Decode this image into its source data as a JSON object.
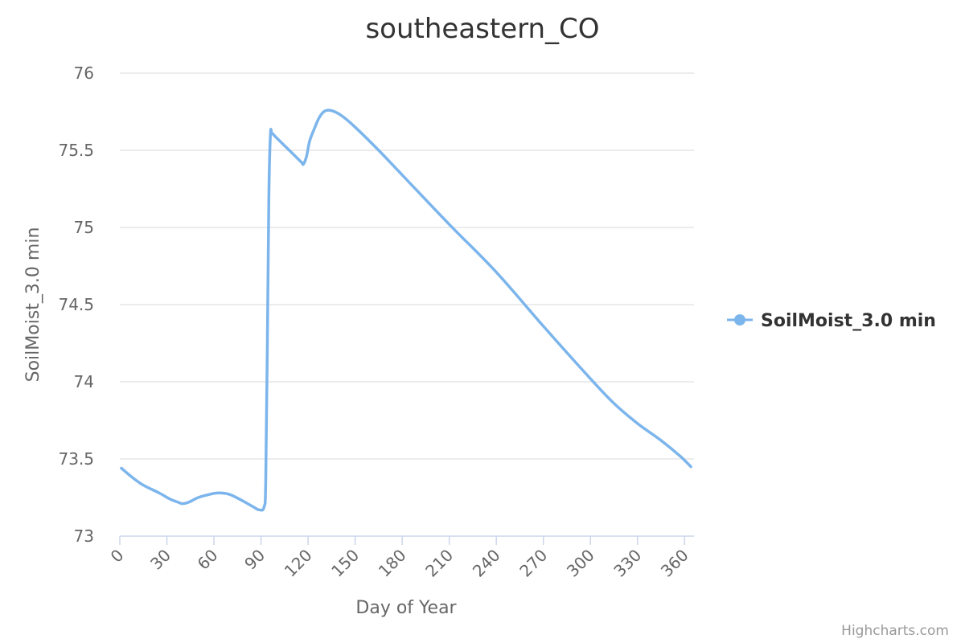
{
  "chart_data": {
    "type": "line",
    "title": "southeastern_CO",
    "xlabel": "Day of Year",
    "ylabel": "SoilMoist_3.0 min",
    "xlim": [
      0,
      366
    ],
    "ylim": [
      73,
      76
    ],
    "x_ticks": [
      0,
      30,
      60,
      90,
      120,
      150,
      180,
      210,
      240,
      270,
      300,
      330,
      360
    ],
    "y_ticks": [
      73,
      73.5,
      74,
      74.5,
      75,
      75.5,
      76
    ],
    "y_tick_labels": [
      "73",
      "73.5",
      "74",
      "74.5",
      "75",
      "75.5",
      "76"
    ],
    "grid": true,
    "legend_position": "right",
    "series": [
      {
        "name": "SoilMoist_3.0 min",
        "color": "#7cb5ec",
        "points": [
          [
            1,
            73.44
          ],
          [
            8,
            73.38
          ],
          [
            15,
            73.33
          ],
          [
            25,
            73.28
          ],
          [
            32,
            73.24
          ],
          [
            37,
            73.22
          ],
          [
            40,
            73.21
          ],
          [
            44,
            73.22
          ],
          [
            50,
            73.25
          ],
          [
            57,
            73.27
          ],
          [
            63,
            73.28
          ],
          [
            70,
            73.27
          ],
          [
            78,
            73.23
          ],
          [
            85,
            73.19
          ],
          [
            89,
            73.17
          ],
          [
            92,
            73.19
          ],
          [
            93,
            73.35
          ],
          [
            94,
            74.2
          ],
          [
            95,
            75.2
          ],
          [
            96,
            75.6
          ],
          [
            97,
            75.61
          ],
          [
            100,
            75.58
          ],
          [
            106,
            75.52
          ],
          [
            112,
            75.46
          ],
          [
            116,
            75.42
          ],
          [
            117,
            75.41
          ],
          [
            119,
            75.46
          ],
          [
            121,
            75.56
          ],
          [
            124,
            75.64
          ],
          [
            127,
            75.71
          ],
          [
            130,
            75.75
          ],
          [
            133,
            75.76
          ],
          [
            137,
            75.75
          ],
          [
            142,
            75.72
          ],
          [
            150,
            75.65
          ],
          [
            165,
            75.5
          ],
          [
            180,
            75.34
          ],
          [
            210,
            75.02
          ],
          [
            240,
            74.71
          ],
          [
            270,
            74.36
          ],
          [
            300,
            74.02
          ],
          [
            315,
            73.86
          ],
          [
            330,
            73.73
          ],
          [
            345,
            73.62
          ],
          [
            357,
            73.52
          ],
          [
            364,
            73.45
          ]
        ]
      }
    ]
  },
  "credit": "Highcharts.com"
}
